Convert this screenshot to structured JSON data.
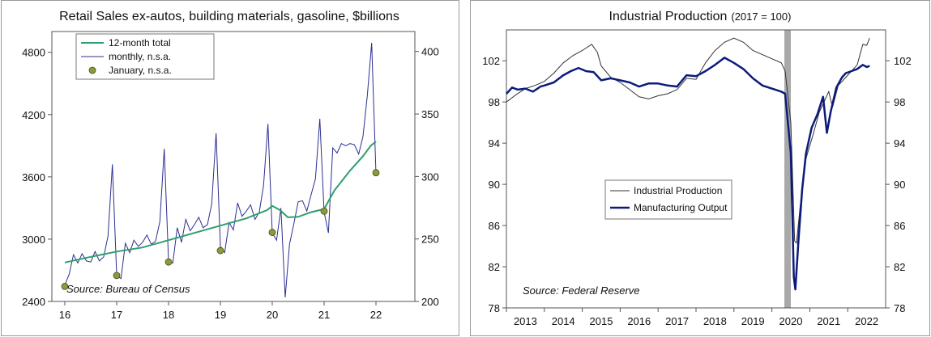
{
  "colors": {
    "retail_total": "#2e9e6c",
    "retail_monthly": "#2b2f8f",
    "retail_january_dot": "#8c9a3a",
    "ip_line": "#333333",
    "mfg_line": "#0c1b7a",
    "recession_band": "#a9a9a9"
  },
  "chart_data": [
    {
      "type": "line",
      "title": "Retail Sales ex-autos, building materials, gasoline, $billions",
      "source": "Source: Bureau of Census",
      "x_tick_labels": [
        "16",
        "17",
        "18",
        "19",
        "20",
        "21",
        "22"
      ],
      "xlim": [
        2015.75,
        2022.75
      ],
      "left_axis": {
        "ticks": [
          "2400",
          "3000",
          "3600",
          "4200",
          "4800"
        ],
        "ylim": [
          2400,
          5000
        ]
      },
      "right_axis": {
        "ticks": [
          "200",
          "250",
          "300",
          "350",
          "400"
        ],
        "ylim": [
          200,
          416
        ]
      },
      "legend": [
        "12-month total",
        "monthly, n.s.a.",
        "January, n.s.a."
      ],
      "series": [
        {
          "name": "12-month total",
          "axis": "left",
          "x": [
            2016.0,
            2016.5,
            2017.0,
            2017.5,
            2018.0,
            2018.5,
            2019.0,
            2019.5,
            2019.9,
            2020.0,
            2020.15,
            2020.3,
            2020.5,
            2020.75,
            2021.0,
            2021.2,
            2021.5,
            2021.75,
            2021.9,
            2022.0
          ],
          "y": [
            2775,
            2830,
            2880,
            2920,
            2990,
            3060,
            3130,
            3200,
            3280,
            3320,
            3280,
            3210,
            3215,
            3260,
            3290,
            3470,
            3660,
            3800,
            3900,
            3940
          ]
        },
        {
          "name": "monthly, n.s.a.",
          "axis": "left",
          "x": [
            2016.0,
            2016.083,
            2016.167,
            2016.25,
            2016.333,
            2016.417,
            2016.5,
            2016.583,
            2016.667,
            2016.75,
            2016.833,
            2016.917,
            2017.0,
            2017.083,
            2017.167,
            2017.25,
            2017.333,
            2017.417,
            2017.5,
            2017.583,
            2017.667,
            2017.75,
            2017.833,
            2017.917,
            2018.0,
            2018.083,
            2018.167,
            2018.25,
            2018.333,
            2018.417,
            2018.5,
            2018.583,
            2018.667,
            2018.75,
            2018.833,
            2018.917,
            2019.0,
            2019.083,
            2019.167,
            2019.25,
            2019.333,
            2019.417,
            2019.5,
            2019.583,
            2019.667,
            2019.75,
            2019.833,
            2019.917,
            2020.0,
            2020.083,
            2020.167,
            2020.25,
            2020.333,
            2020.417,
            2020.5,
            2020.583,
            2020.667,
            2020.75,
            2020.833,
            2020.917,
            2021.0,
            2021.083,
            2021.167,
            2021.25,
            2021.333,
            2021.417,
            2021.5,
            2021.583,
            2021.667,
            2021.75,
            2021.833,
            2021.917,
            2022.0
          ],
          "y": [
            2560,
            2660,
            2850,
            2770,
            2860,
            2790,
            2780,
            2880,
            2790,
            2830,
            3030,
            3720,
            2650,
            2620,
            2960,
            2870,
            2990,
            2930,
            2970,
            3040,
            2950,
            2980,
            3170,
            3870,
            2790,
            2770,
            3110,
            2970,
            3190,
            3080,
            3140,
            3210,
            3110,
            3140,
            3340,
            4020,
            2930,
            2870,
            3160,
            3090,
            3350,
            3220,
            3270,
            3330,
            3190,
            3260,
            3520,
            4110,
            3060,
            2990,
            3300,
            2440,
            2950,
            3150,
            3360,
            3370,
            3270,
            3430,
            3580,
            4160,
            3260,
            3060,
            3880,
            3830,
            3920,
            3900,
            3920,
            3910,
            3820,
            3990,
            4380,
            4890,
            3630
          ]
        },
        {
          "name": "January, n.s.a.",
          "axis": "left",
          "type": "scatter",
          "x": [
            2016.0,
            2017.0,
            2018.0,
            2019.0,
            2020.0,
            2021.0,
            2022.0
          ],
          "y": [
            2545,
            2650,
            2780,
            2890,
            3065,
            3270,
            3640
          ]
        }
      ]
    },
    {
      "type": "line",
      "title": "Industrial Production",
      "title_suffix": "(2017 = 100)",
      "source": "Source: Federal Reserve",
      "x_tick_labels": [
        "2013",
        "2014",
        "2015",
        "2016",
        "2017",
        "2018",
        "2019",
        "2020",
        "2021",
        "2022"
      ],
      "xlim": [
        2012.5,
        2022.5
      ],
      "y_ticks": [
        "78",
        "82",
        "86",
        "90",
        "94",
        "98",
        "102"
      ],
      "ylim": [
        78,
        105
      ],
      "recession_band": [
        2019.83,
        2020.0
      ],
      "legend": [
        "Industrial Production",
        "Manufacturing Output"
      ],
      "series": [
        {
          "name": "Industrial Production",
          "x": [
            2012.5,
            2012.75,
            2013.0,
            2013.25,
            2013.5,
            2013.75,
            2014.0,
            2014.25,
            2014.5,
            2014.75,
            2014.9,
            2015.0,
            2015.25,
            2015.5,
            2015.75,
            2016.0,
            2016.25,
            2016.5,
            2016.75,
            2017.0,
            2017.25,
            2017.5,
            2017.75,
            2018.0,
            2018.25,
            2018.5,
            2018.75,
            2019.0,
            2019.25,
            2019.5,
            2019.75,
            2019.85,
            2020.0,
            2020.1,
            2020.15,
            2020.25,
            2020.4,
            2020.6,
            2020.75,
            2021.0,
            2021.1,
            2021.25,
            2021.5,
            2021.75,
            2021.9,
            2022.0,
            2022.08
          ],
          "y": [
            98.0,
            98.7,
            99.3,
            99.6,
            100.0,
            100.8,
            101.8,
            102.5,
            103.0,
            103.6,
            102.8,
            101.5,
            100.4,
            99.9,
            99.2,
            98.5,
            98.3,
            98.6,
            98.8,
            99.2,
            100.3,
            100.2,
            101.8,
            103.0,
            103.8,
            104.2,
            103.8,
            103.0,
            102.6,
            102.2,
            101.8,
            101.0,
            96.0,
            84.5,
            84.3,
            88.0,
            92.5,
            95.0,
            97.0,
            99.0,
            97.5,
            99.6,
            100.6,
            101.6,
            103.6,
            103.5,
            104.2
          ]
        },
        {
          "name": "Manufacturing Output",
          "x": [
            2012.5,
            2012.65,
            2012.8,
            2013.0,
            2013.2,
            2013.4,
            2013.5,
            2013.75,
            2014.0,
            2014.2,
            2014.4,
            2014.6,
            2014.8,
            2015.0,
            2015.25,
            2015.5,
            2015.75,
            2016.0,
            2016.25,
            2016.5,
            2016.75,
            2017.0,
            2017.25,
            2017.5,
            2017.75,
            2018.0,
            2018.25,
            2018.5,
            2018.75,
            2019.0,
            2019.25,
            2019.5,
            2019.75,
            2019.85,
            2020.0,
            2020.08,
            2020.12,
            2020.2,
            2020.3,
            2020.4,
            2020.55,
            2020.7,
            2020.85,
            2020.95,
            2021.05,
            2021.2,
            2021.35,
            2021.45,
            2021.6,
            2021.75,
            2021.9,
            2022.0,
            2022.08
          ],
          "y": [
            98.8,
            99.4,
            99.2,
            99.3,
            99.0,
            99.5,
            99.6,
            99.9,
            100.6,
            101.0,
            101.3,
            101.0,
            100.9,
            100.1,
            100.3,
            100.1,
            99.9,
            99.5,
            99.8,
            99.8,
            99.6,
            99.5,
            100.6,
            100.5,
            101.0,
            101.6,
            102.3,
            101.8,
            101.2,
            100.3,
            99.6,
            99.3,
            99.0,
            98.8,
            93.0,
            81.0,
            79.8,
            84.5,
            89.5,
            93.0,
            95.5,
            96.8,
            98.5,
            95.0,
            97.0,
            99.4,
            100.4,
            100.8,
            101.0,
            101.2,
            101.6,
            101.4,
            101.5
          ]
        }
      ]
    }
  ]
}
